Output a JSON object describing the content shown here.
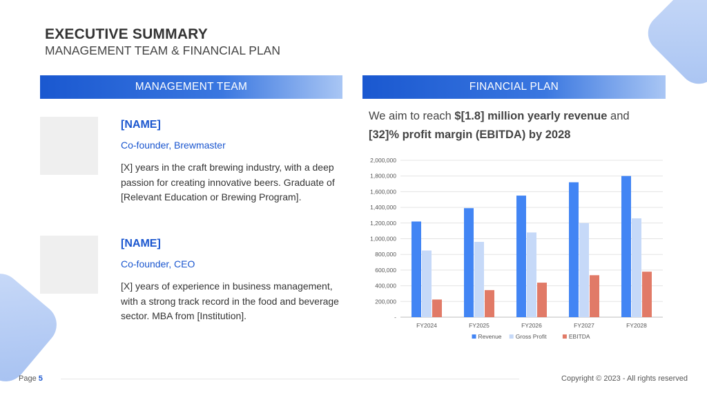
{
  "header": {
    "title": "EXECUTIVE SUMMARY",
    "subtitle": "MANAGEMENT TEAM & FINANCIAL PLAN"
  },
  "management": {
    "heading": "MANAGEMENT TEAM",
    "members": [
      {
        "name": "[NAME]",
        "role": "Co-founder, Brewmaster",
        "bio": "[X] years in the craft brewing industry, with a deep passion for creating innovative beers. Graduate of [Relevant Education or Brewing Program]."
      },
      {
        "name": "[NAME]",
        "role": "Co-founder, CEO",
        "bio": "[X] years of experience in business management, with a strong track record in the food and beverage sector. MBA from [Institution]."
      }
    ]
  },
  "financial": {
    "heading": "FINANCIAL PLAN",
    "statement": {
      "p1": "We aim to reach ",
      "b1": "$[1.8] million yearly revenue",
      "p2": " and ",
      "b2": "[32]% profit margin (EBITDA) by 2028"
    }
  },
  "chart_data": {
    "type": "bar",
    "categories": [
      "FY2024",
      "FY2025",
      "FY2026",
      "FY2027",
      "FY2028"
    ],
    "series": [
      {
        "name": "Revenue",
        "color": "#4285f4",
        "values": [
          1220000,
          1390000,
          1550000,
          1720000,
          1800000
        ]
      },
      {
        "name": "Gross Profit",
        "color": "#c6d9f8",
        "values": [
          850000,
          960000,
          1080000,
          1200000,
          1260000
        ]
      },
      {
        "name": "EBITDA",
        "color": "#e17a67",
        "values": [
          225000,
          345000,
          440000,
          535000,
          580000
        ]
      }
    ],
    "ylim": [
      0,
      2000000
    ],
    "yticks": [
      "-",
      "200,000",
      "400,000",
      "600,000",
      "800,000",
      "1,000,000",
      "1,200,000",
      "1,400,000",
      "1,600,000",
      "1,800,000",
      "2,000,000"
    ],
    "grid": true,
    "legend": "bottom"
  },
  "footer": {
    "page_label": "Page",
    "page_number": "5",
    "copyright": "Copyright © 2023 - All rights reserved"
  }
}
